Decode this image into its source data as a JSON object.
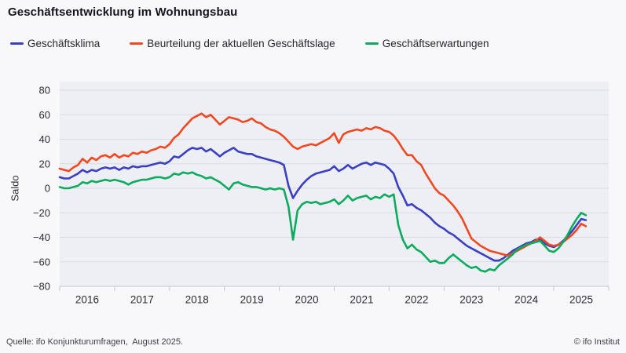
{
  "header": {
    "title": "Geschäftsentwicklung im Wohnungsbau"
  },
  "legend": [
    {
      "id": "geschaeftsklima",
      "label": "Geschäftsklima",
      "color": "#3b3fc2"
    },
    {
      "id": "geschaeftslage",
      "label": "Beurteilung der aktuellen Geschäftslage",
      "color": "#f1481f"
    },
    {
      "id": "geschaeftserwartungen",
      "label": "Geschäftserwartungen",
      "color": "#0cab5e"
    }
  ],
  "footer": {
    "source": "Quelle: ifo Konjunkturumfragen,  August 2025.",
    "copyright": "© ifo Institut"
  },
  "colors": {
    "page_background": "#f8f8fb",
    "plot_background": "#edeff5",
    "gridline": "#d9dbe5",
    "axis": "#c2c6d4",
    "tick_text": "#2b2b34"
  },
  "chart_data": {
    "type": "line",
    "title": "Geschäftsentwicklung im Wohnungsbau",
    "xlabel": "",
    "ylabel": "Saldo",
    "ylim": [
      -80,
      80
    ],
    "ytick_step": 20,
    "grid": true,
    "legend_position": "top",
    "x_unit": "month",
    "x_first": "2016-01",
    "x_last": "2025-08",
    "x_axis_right_edge": "2026-01",
    "year_labels": [
      "2016",
      "2017",
      "2018",
      "2019",
      "2020",
      "2021",
      "2022",
      "2023",
      "2024",
      "2025"
    ],
    "series": [
      {
        "name": "Geschäftsklima",
        "id": "geschaeftsklima",
        "color": "#3b3fc2",
        "values": [
          9,
          8,
          8,
          10,
          12,
          15,
          13,
          15,
          14,
          16,
          17,
          16,
          17,
          15,
          17,
          16,
          18,
          17,
          18,
          18,
          19,
          20,
          21,
          20,
          22,
          26,
          25,
          28,
          31,
          33,
          32,
          33,
          30,
          32,
          29,
          26,
          29,
          31,
          33,
          30,
          29,
          28,
          28,
          26,
          25,
          24,
          23,
          22,
          21,
          19,
          2,
          -8,
          -2,
          3,
          7,
          10,
          12,
          13,
          14,
          15,
          18,
          14,
          16,
          19,
          16,
          18,
          20,
          21,
          19,
          21,
          20,
          19,
          16,
          12,
          1,
          -6,
          -14,
          -13,
          -16,
          -18,
          -21,
          -24,
          -28,
          -31,
          -33,
          -36,
          -38,
          -41,
          -44,
          -47,
          -49,
          -51,
          -53,
          -55,
          -57,
          -59,
          -59,
          -57,
          -54,
          -51,
          -49,
          -47,
          -45,
          -44,
          -42,
          -42,
          -45,
          -47,
          -48,
          -46,
          -43,
          -39,
          -35,
          -30,
          -25,
          -26
        ]
      },
      {
        "name": "Beurteilung der aktuellen Geschäftslage",
        "id": "geschaeftslage",
        "color": "#f1481f",
        "values": [
          16,
          15,
          14,
          17,
          19,
          24,
          21,
          25,
          23,
          26,
          27,
          25,
          28,
          25,
          27,
          26,
          29,
          28,
          30,
          29,
          31,
          32,
          34,
          33,
          36,
          41,
          44,
          49,
          53,
          57,
          59,
          61,
          58,
          60,
          56,
          52,
          55,
          58,
          57,
          56,
          54,
          55,
          57,
          54,
          53,
          50,
          48,
          47,
          45,
          42,
          38,
          34,
          32,
          34,
          35,
          36,
          35,
          37,
          39,
          41,
          45,
          37,
          44,
          46,
          47,
          48,
          47,
          49,
          48,
          50,
          49,
          47,
          46,
          43,
          38,
          32,
          27,
          27,
          22,
          19,
          12,
          6,
          0,
          -4,
          -6,
          -10,
          -14,
          -19,
          -25,
          -33,
          -41,
          -44,
          -47,
          -49,
          -51,
          -52,
          -53,
          -54,
          -55,
          -53,
          -51,
          -49,
          -47,
          -45,
          -43,
          -40,
          -43,
          -46,
          -47,
          -46,
          -44,
          -41,
          -38,
          -34,
          -29,
          -31
        ]
      },
      {
        "name": "Geschäftserwartungen",
        "id": "geschaeftserwartungen",
        "color": "#0cab5e",
        "values": [
          1,
          0,
          0,
          1,
          2,
          5,
          4,
          6,
          5,
          6,
          7,
          6,
          7,
          6,
          5,
          3,
          5,
          6,
          7,
          7,
          8,
          9,
          9,
          8,
          9,
          12,
          11,
          13,
          12,
          13,
          11,
          10,
          8,
          9,
          7,
          5,
          2,
          -1,
          4,
          5,
          3,
          2,
          1,
          1,
          0,
          -1,
          0,
          -1,
          0,
          -1,
          -15,
          -42,
          -18,
          -13,
          -11,
          -12,
          -11,
          -13,
          -12,
          -11,
          -9,
          -13,
          -10,
          -6,
          -10,
          -8,
          -7,
          -6,
          -9,
          -7,
          -8,
          -5,
          -7,
          -5,
          -30,
          -42,
          -49,
          -46,
          -50,
          -52,
          -56,
          -60,
          -59,
          -61,
          -61,
          -57,
          -54,
          -57,
          -60,
          -63,
          -65,
          -64,
          -67,
          -68,
          -66,
          -67,
          -63,
          -60,
          -57,
          -54,
          -50,
          -48,
          -46,
          -45,
          -44,
          -43,
          -47,
          -51,
          -52,
          -49,
          -44,
          -38,
          -31,
          -25,
          -20,
          -22
        ]
      }
    ]
  }
}
